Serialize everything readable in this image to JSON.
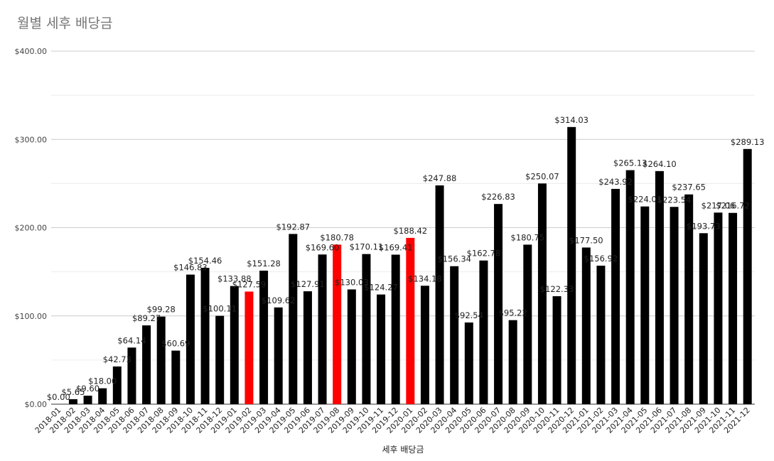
{
  "chart_data": {
    "type": "bar",
    "title": "월별 세후 배당금",
    "xlabel": "세후 배당금",
    "ylabel": "",
    "ylim": [
      0,
      400
    ],
    "yticks": [
      "$0.00",
      "$100.00",
      "$200.00",
      "$300.00",
      "$400.00"
    ],
    "grid": true,
    "legend": "none",
    "colors": {
      "default": "#000000",
      "highlight": "#ff0000",
      "grid": "#cccccc"
    },
    "categories": [
      "2018-01",
      "2018-02",
      "2018-03",
      "2018-04",
      "2018-05",
      "2018-06",
      "2018-07",
      "2018-08",
      "2018-09",
      "2018-10",
      "2018-11",
      "2018-12",
      "2019-01",
      "2019-02",
      "2019-03",
      "2019-04",
      "2019-05",
      "2019-06",
      "2019-07",
      "2019-08",
      "2019-09",
      "2019-10",
      "2019-11",
      "2019-12",
      "2020-01",
      "2020-02",
      "2020-03",
      "2020-04",
      "2020-05",
      "2020-06",
      "2020-07",
      "2020-08",
      "2020-09",
      "2020-10",
      "2020-11",
      "2020-12",
      "2021-01",
      "2021-02",
      "2021-03",
      "2021-04",
      "2021-05",
      "2021-06",
      "2021-07",
      "2021-08",
      "2021-09",
      "2021-10",
      "2021-11",
      "2021-12"
    ],
    "values": [
      0.0,
      5.65,
      9.6,
      18.0,
      42.73,
      64.14,
      89.27,
      99.28,
      60.69,
      146.83,
      154.46,
      100.11,
      133.88,
      127.59,
      151.28,
      109.62,
      192.87,
      127.91,
      169.6,
      180.78,
      130.03,
      170.11,
      124.27,
      169.41,
      188.42,
      134.18,
      247.88,
      156.34,
      92.54,
      162.78,
      226.83,
      95.22,
      180.75,
      250.07,
      122.33,
      314.03,
      177.5,
      156.92,
      243.92,
      265.13,
      224.01,
      264.1,
      223.54,
      237.65,
      193.73,
      217.06,
      216.72,
      289.13
    ],
    "labels": [
      "$0.00",
      "$5.65",
      "$9.60",
      "$18.00",
      "$42.73",
      "$64.14",
      "$89.27",
      "$99.28",
      "$60.69",
      "$146.83",
      "$154.46",
      "$100.11",
      "$133.88",
      "$127.59",
      "$151.28",
      "$109.62",
      "$192.87",
      "$127.91",
      "$169.60",
      "$180.78",
      "$130.03",
      "$170.11",
      "$124.27",
      "$169.41",
      "$188.42",
      "$134.18",
      "$247.88",
      "$156.34",
      "$92.54",
      "$162.78",
      "$226.83",
      "$95.22",
      "$180.75",
      "$250.07",
      "$122.33",
      "$314.03",
      "$177.50",
      "$156.92",
      "$243.92",
      "$265.13",
      "$224.01",
      "$264.10",
      "$223.54",
      "$237.65",
      "$193.73",
      "$217.06",
      "$216.72",
      "$289.13"
    ],
    "highlighted": [
      "2018-01",
      "2019-02",
      "2019-08",
      "2020-01"
    ]
  }
}
